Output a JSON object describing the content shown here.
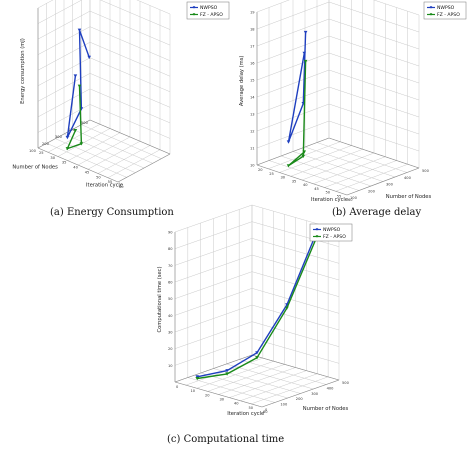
{
  "captions": {
    "a": "(a) Energy Consumption",
    "b": "(b) Average delay",
    "c": "(c) Computational time"
  },
  "chart_data": [
    {
      "type": "line3d",
      "id": "a",
      "xlabel": "Iteration cycle",
      "ylabel": "Number of Nodes",
      "zlabel": "Energy consumption (mJ)",
      "x_ticks": [
        "25",
        "30",
        "35",
        "40",
        "45",
        "50",
        "55",
        "60"
      ],
      "y_ticks": [
        "100",
        "200",
        "300",
        "400",
        "500"
      ],
      "z_ticks": [],
      "xlim": [
        25,
        60
      ],
      "ylim": [
        100,
        500
      ],
      "grid": true,
      "legend": "top-right",
      "series": [
        {
          "name": "NWPSO",
          "color": "#1f3fbf",
          "marker": "arrow",
          "points": [
            [
              30,
              300,
              0.45
            ],
            [
              35,
              150,
              0.12
            ],
            [
              40,
              170,
              0.35
            ],
            [
              42,
              120,
              0.95
            ],
            [
              44,
              160,
              0.75
            ]
          ]
        },
        {
          "name": "FZ - APSO",
          "color": "#1a8a1a",
          "marker": "arrow",
          "points": [
            [
              30,
              300,
              0.06
            ],
            [
              35,
              150,
              0.04
            ],
            [
              40,
              170,
              0.1
            ],
            [
              42,
              120,
              0.55
            ]
          ]
        }
      ]
    },
    {
      "type": "line3d",
      "id": "b",
      "xlabel": "Iteration cycle",
      "ylabel": "Number of Nodes",
      "zlabel": "Average delay (ms)",
      "x_ticks": [
        "20",
        "25",
        "30",
        "35",
        "40",
        "45",
        "50",
        "55",
        "60"
      ],
      "y_ticks": [
        "100",
        "200",
        "300",
        "400",
        "500"
      ],
      "z_ticks": [
        "10",
        "11",
        "12",
        "13",
        "14",
        "15",
        "16",
        "17",
        "18",
        "19"
      ],
      "xlim": [
        20,
        60
      ],
      "ylim": [
        100,
        500
      ],
      "zlim": [
        10,
        19
      ],
      "grid": true,
      "legend": "top-right",
      "series": [
        {
          "name": "NWPSO",
          "color": "#1f3fbf",
          "marker": "arrow",
          "points": [
            [
              25,
              300,
              16.0
            ],
            [
              30,
              150,
              11.6
            ],
            [
              35,
              170,
              14.0
            ],
            [
              40,
              120,
              18.6
            ]
          ]
        },
        {
          "name": "FZ - APSO",
          "color": "#1a8a1a",
          "marker": "arrow",
          "points": [
            [
              25,
              300,
              10.2
            ],
            [
              30,
              150,
              10.2
            ],
            [
              35,
              170,
              10.9
            ],
            [
              40,
              120,
              16.9
            ]
          ]
        }
      ]
    },
    {
      "type": "line3d",
      "id": "c",
      "xlabel": "Iteration cycle",
      "ylabel": "Number of Nodes",
      "zlabel": "Computational time (sec)",
      "x_ticks": [
        "0",
        "10",
        "20",
        "30",
        "40",
        "50",
        "60"
      ],
      "y_ticks": [
        "0",
        "100",
        "200",
        "300",
        "400",
        "500"
      ],
      "z_ticks": [
        "10",
        "20",
        "30",
        "40",
        "50",
        "60",
        "70",
        "80",
        "90"
      ],
      "xlim": [
        0,
        60
      ],
      "ylim": [
        0,
        500
      ],
      "zlim": [
        0,
        90
      ],
      "grid": true,
      "legend": "top-right",
      "series": [
        {
          "name": "NWPSO",
          "color": "#1f3fbf",
          "marker": "arrow",
          "points": [
            [
              10,
              50,
              4
            ],
            [
              20,
              150,
              7
            ],
            [
              30,
              250,
              17
            ],
            [
              40,
              350,
              45
            ],
            [
              50,
              450,
              88
            ]
          ]
        },
        {
          "name": "FZ - APSO",
          "color": "#1a8a1a",
          "marker": "arrow",
          "points": [
            [
              10,
              50,
              3
            ],
            [
              20,
              150,
              5
            ],
            [
              30,
              250,
              14
            ],
            [
              40,
              350,
              43
            ],
            [
              50,
              450,
              85
            ]
          ]
        }
      ]
    }
  ]
}
